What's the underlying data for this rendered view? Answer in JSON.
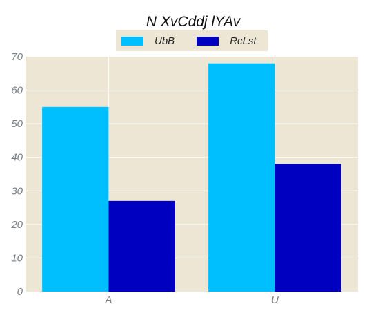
{
  "chart_data": {
    "type": "bar",
    "title": "N XvCddj lYAv",
    "xlabel": "",
    "ylabel": "",
    "categories": [
      "A",
      "U"
    ],
    "series": [
      {
        "name": "UbB",
        "values": [
          55,
          68
        ],
        "color": "#00bfff"
      },
      {
        "name": "RcLst",
        "values": [
          27,
          38
        ],
        "color": "#0000c0"
      }
    ],
    "ylim": [
      0,
      70
    ],
    "yticks": [
      0,
      10,
      20,
      30,
      40,
      50,
      60,
      70
    ],
    "grid": true,
    "legend_position": "top-center",
    "plot_background": "#ede6d4"
  }
}
